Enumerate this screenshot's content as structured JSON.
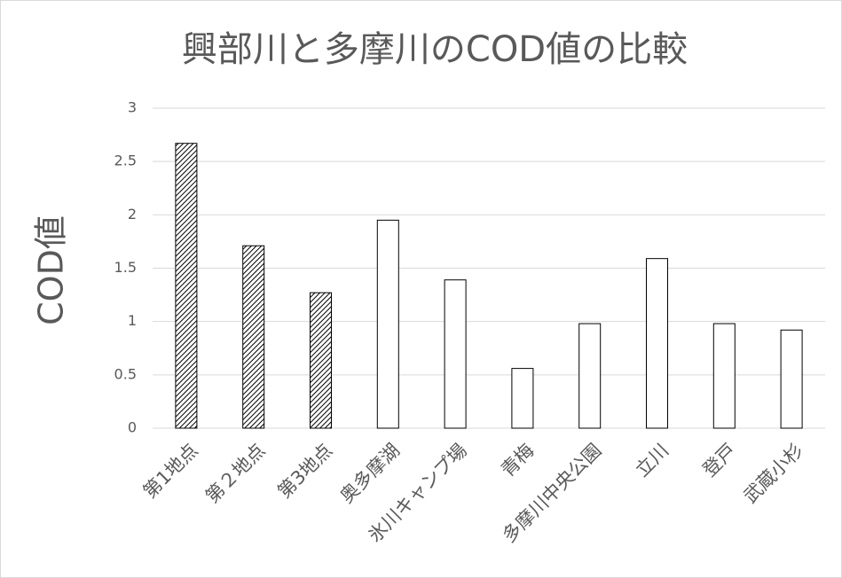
{
  "chart_data": {
    "type": "bar",
    "title": "興部川と多摩川のCOD値の比較",
    "y_label": "COD値",
    "categories": [
      "第1地点",
      "第２地点",
      "第3地点",
      "奥多摩湖",
      "氷川キャンプ場",
      "青梅",
      "多摩川中央公園",
      "立川",
      "登戸",
      "武蔵小杉"
    ],
    "values": [
      2.67,
      1.71,
      1.27,
      1.95,
      1.39,
      0.56,
      0.98,
      1.59,
      0.98,
      0.92
    ],
    "bar_fills": [
      "hatched",
      "hatched",
      "hatched",
      "white",
      "white",
      "white",
      "white",
      "white",
      "white",
      "white"
    ],
    "ylim": [
      0,
      3
    ],
    "yticks": [
      0,
      0.5,
      1,
      1.5,
      2,
      2.5,
      3
    ],
    "grid": true
  }
}
